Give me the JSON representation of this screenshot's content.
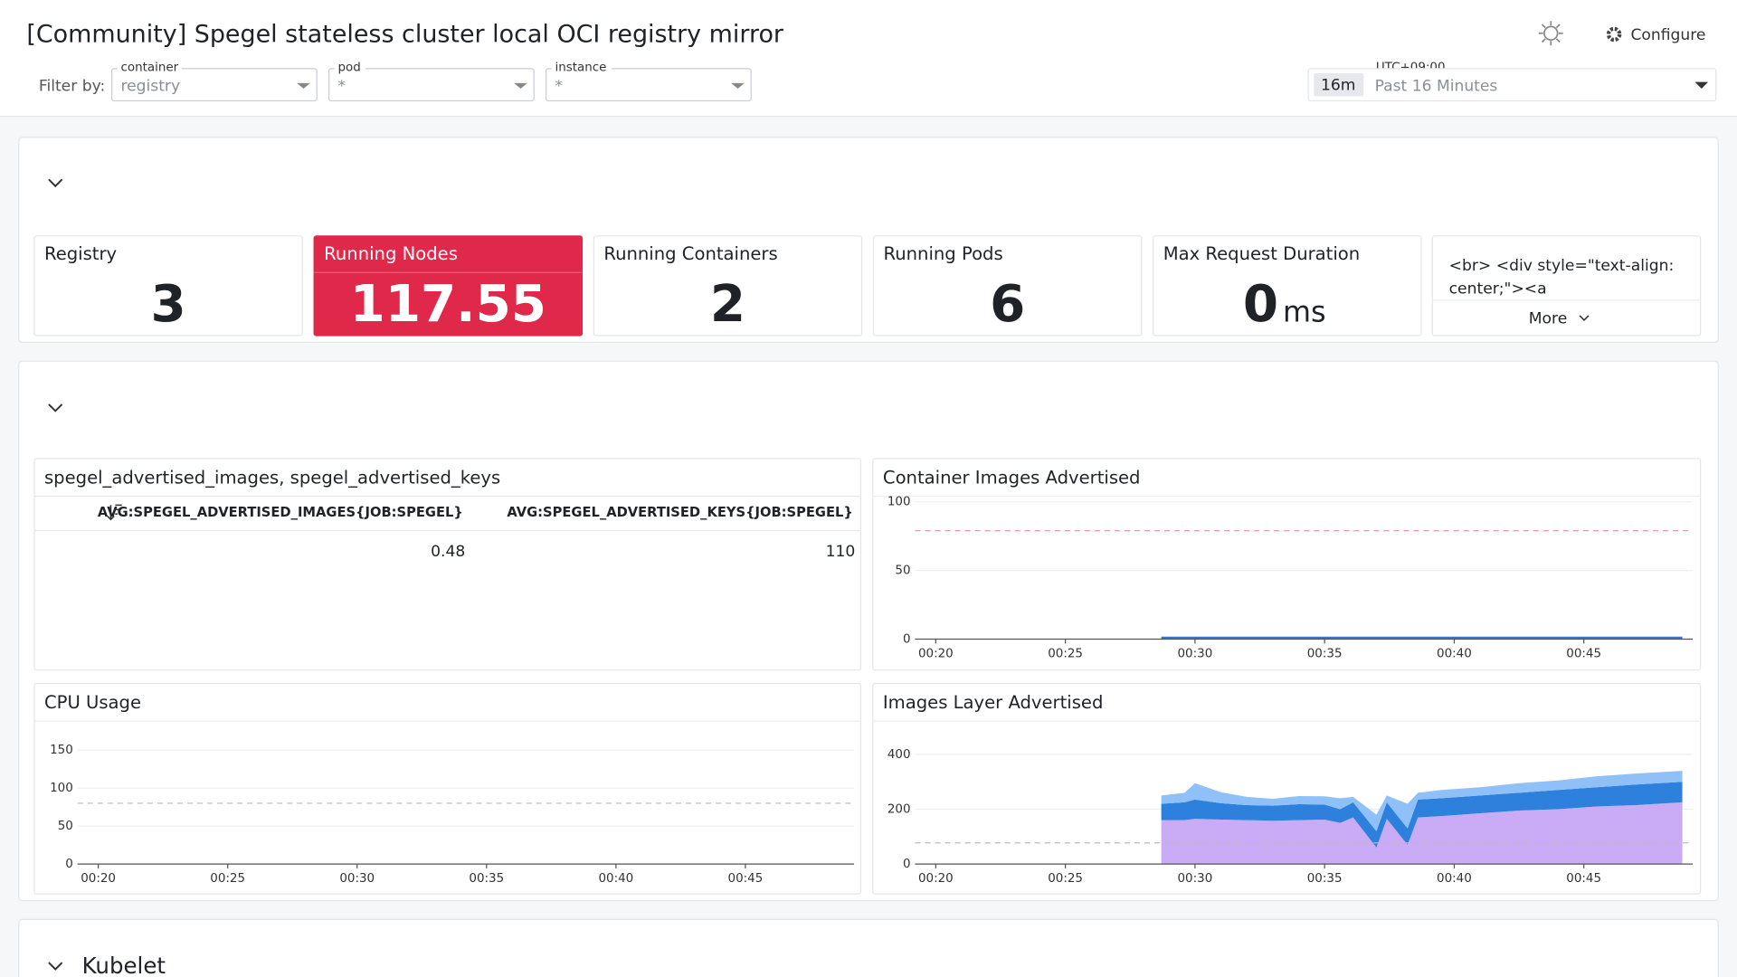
{
  "header": {
    "title": "[Community] Spegel stateless cluster local OCI registry mirror",
    "filter_label": "Filter by:",
    "filters": [
      {
        "label": "container",
        "value": "registry"
      },
      {
        "label": "pod",
        "value": "*"
      },
      {
        "label": "instance",
        "value": "*"
      }
    ],
    "timezone": "UTC+09:00",
    "time_badge": "16m",
    "time_range": "Past 16 Minutes",
    "configure": "Configure"
  },
  "stats": [
    {
      "title": "Registry",
      "value": 3
    },
    {
      "title": "Running Nodes",
      "value": 117.55,
      "color": "#e0284a"
    },
    {
      "title": "Running Containers",
      "value": 2
    },
    {
      "title": "Running Pods",
      "value": 6
    },
    {
      "title": "Max Request Duration",
      "value": 0,
      "unit": "ms"
    }
  ],
  "html_panel": {
    "text": "<br> <div style=\"text-align: center;\"><a",
    "more": "More"
  },
  "table": {
    "title": "spegel_advertised_images, spegel_advertised_keys",
    "columns": [
      "AVG:SPEGEL_ADVERTISED_IMAGES{JOB:SPEGEL}",
      "AVG:SPEGEL_ADVERTISED_KEYS{JOB:SPEGEL}"
    ],
    "rows": [
      [
        0.48,
        110
      ]
    ]
  },
  "charts": [
    {
      "type": "line",
      "title": "Container Images Advertised",
      "xlim": [
        19.2,
        49.2
      ],
      "xticks": [
        {
          "value": 20,
          "label": "00:20"
        },
        {
          "value": 25,
          "label": "00:25"
        },
        {
          "value": 30,
          "label": "00:30"
        },
        {
          "value": 35,
          "label": "00:35"
        },
        {
          "value": 40,
          "label": "00:40"
        },
        {
          "value": 45,
          "label": "00:45"
        }
      ],
      "ylim": [
        0,
        100
      ],
      "yticks": [
        0,
        50,
        100
      ],
      "threshold": 79,
      "x": [
        28.7,
        33,
        38,
        43,
        48.8
      ],
      "series": [
        {
          "color": "#3d71d9",
          "values": [
            1,
            1,
            1,
            1,
            1
          ]
        }
      ]
    },
    {
      "type": "line",
      "title": "CPU Usage",
      "xlim": [
        19.2,
        49.2
      ],
      "xticks": [
        {
          "value": 20,
          "label": "00:20"
        },
        {
          "value": 25,
          "label": "00:25"
        },
        {
          "value": 30,
          "label": "00:30"
        },
        {
          "value": 35,
          "label": "00:35"
        },
        {
          "value": 40,
          "label": "00:40"
        },
        {
          "value": 45,
          "label": "00:45"
        }
      ],
      "ylim": [
        0,
        175
      ],
      "yticks": [
        0,
        50,
        100,
        150
      ],
      "threshold": 80,
      "x": [],
      "series": []
    },
    {
      "type": "stacked_area",
      "title": "Images Layer Advertised",
      "xlim": [
        19.2,
        49.2
      ],
      "xticks": [
        {
          "value": 20,
          "label": "00:20"
        },
        {
          "value": 25,
          "label": "00:25"
        },
        {
          "value": 30,
          "label": "00:30"
        },
        {
          "value": 35,
          "label": "00:35"
        },
        {
          "value": 40,
          "label": "00:40"
        },
        {
          "value": 45,
          "label": "00:45"
        }
      ],
      "ylim": [
        0,
        485
      ],
      "yticks": [
        0,
        200,
        400
      ],
      "threshold": 77,
      "x": [
        28.7,
        29.6,
        30.0,
        31,
        32,
        33,
        34,
        35,
        35.6,
        36.1,
        37.0,
        37.4,
        38.2,
        38.6,
        39.5,
        41,
        42.5,
        44,
        45.5,
        47,
        48.8
      ],
      "series": [
        {
          "color": "#c9acf5",
          "values": [
            160,
            160,
            165,
            162,
            160,
            158,
            160,
            162,
            150,
            170,
            60,
            165,
            70,
            170,
            175,
            185,
            195,
            200,
            210,
            215,
            225
          ]
        },
        {
          "color": "#2d80dc",
          "values": [
            60,
            65,
            70,
            60,
            55,
            55,
            58,
            55,
            50,
            55,
            60,
            60,
            60,
            65,
            65,
            65,
            65,
            70,
            70,
            75,
            75
          ]
        },
        {
          "color": "#8fc0f7",
          "values": [
            30,
            35,
            60,
            40,
            30,
            25,
            30,
            30,
            40,
            20,
            60,
            25,
            90,
            25,
            30,
            30,
            35,
            35,
            40,
            40,
            40
          ]
        }
      ]
    }
  ],
  "kubelet_section": "Kubelet"
}
